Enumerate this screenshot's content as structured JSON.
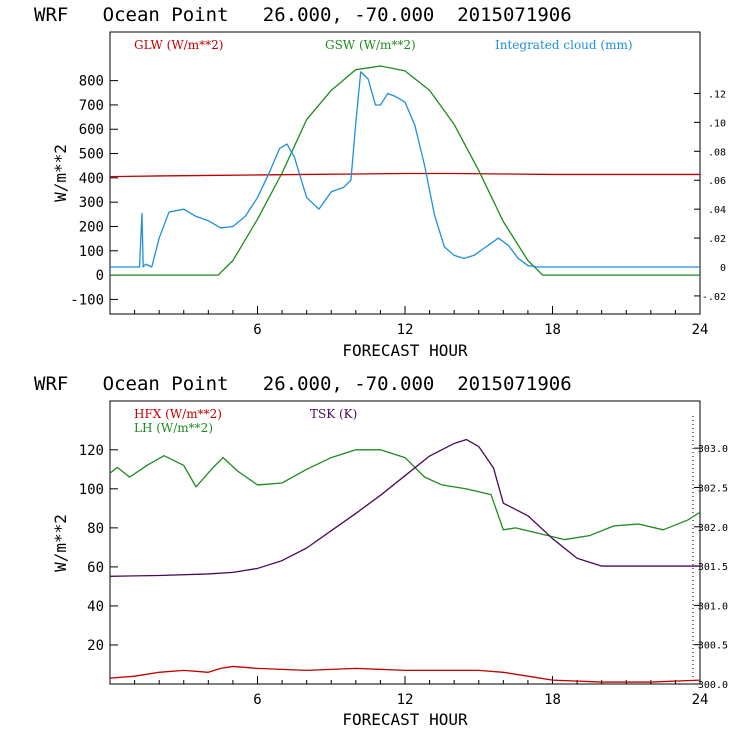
{
  "chart_data": [
    {
      "type": "line",
      "title": "WRF   Ocean Point   26.000, -70.000  2015071906",
      "xlabel": "FORECAST HOUR",
      "ylabel": "W/m**2",
      "xlim": [
        0,
        24
      ],
      "ylim": [
        -160,
        1000
      ],
      "xticks": [
        "6",
        "12",
        "18",
        "24"
      ],
      "yticks": [
        "-100",
        "0",
        "100",
        "200",
        "300",
        "400",
        "500",
        "600",
        "700",
        "800"
      ],
      "y2lim": [
        -0.0325,
        0.1625
      ],
      "y2ticks": [
        "-.02",
        "0",
        ".02",
        ".04",
        ".06",
        ".08",
        ".10",
        ".12"
      ],
      "series": [
        {
          "name": "GLW (W/m**2)",
          "color": "#c00000",
          "axis": "left",
          "x": [
            0,
            2,
            4,
            6,
            8,
            10,
            12,
            14,
            16,
            18,
            20,
            22,
            24
          ],
          "y": [
            405,
            408,
            410,
            412,
            414,
            416,
            418,
            418,
            416,
            414,
            414,
            414,
            414
          ]
        },
        {
          "name": "GSW (W/m**2)",
          "color": "#1e8a1e",
          "axis": "left",
          "x": [
            0,
            4.4,
            5,
            6,
            7,
            8,
            9,
            10,
            11,
            12,
            13,
            14,
            15,
            16,
            17,
            17.6,
            24
          ],
          "y": [
            0,
            0,
            60,
            230,
            420,
            640,
            760,
            845,
            860,
            840,
            760,
            620,
            430,
            220,
            60,
            0,
            0
          ]
        },
        {
          "name": "Integrated cloud (mm)",
          "color": "#1e8fdc",
          "axis": "right",
          "x": [
            0,
            1.2,
            1.3,
            1.35,
            1.45,
            1.7,
            2.0,
            2.4,
            3.0,
            3.5,
            4.0,
            4.5,
            5.0,
            5.5,
            6.0,
            6.5,
            6.9,
            7.2,
            7.5,
            8.0,
            8.5,
            9.0,
            9.5,
            9.8,
            10.0,
            10.2,
            10.5,
            10.8,
            11.0,
            11.3,
            11.6,
            12.0,
            12.4,
            12.8,
            13.2,
            13.6,
            14.0,
            14.4,
            14.8,
            15.3,
            15.8,
            16.2,
            16.6,
            17.0,
            17.4,
            18.0,
            24.0
          ],
          "y": [
            0,
            0,
            0.037,
            0,
            0.002,
            0,
            0.02,
            0.038,
            0.04,
            0.035,
            0.032,
            0.027,
            0.028,
            0.035,
            0.048,
            0.066,
            0.082,
            0.085,
            0.076,
            0.048,
            0.04,
            0.052,
            0.055,
            0.06,
            0.1,
            0.135,
            0.13,
            0.112,
            0.112,
            0.12,
            0.118,
            0.114,
            0.098,
            0.07,
            0.036,
            0.014,
            0.008,
            0.006,
            0.008,
            0.014,
            0.02,
            0.015,
            0.006,
            0.001,
            0,
            0,
            0
          ]
        }
      ]
    },
    {
      "type": "line",
      "title": "WRF   Ocean Point   26.000, -70.000  2015071906",
      "xlabel": "FORECAST HOUR",
      "ylabel": "W/m**2",
      "xlim": [
        0,
        24
      ],
      "ylim": [
        0,
        145
      ],
      "xticks": [
        "6",
        "12",
        "18",
        "24"
      ],
      "yticks": [
        "20",
        "40",
        "60",
        "80",
        "100",
        "120"
      ],
      "y2lim": [
        300.0,
        303.6
      ],
      "y2ticks": [
        "300.0",
        "300.5",
        "301.0",
        "301.5",
        "302.0",
        "302.5",
        "303.0"
      ],
      "series": [
        {
          "name": "HFX (W/m**2)",
          "color": "#c00000",
          "axis": "left",
          "x": [
            0,
            1,
            2,
            3,
            4,
            4.5,
            5,
            6,
            8,
            10,
            12,
            14,
            15,
            16,
            17,
            18,
            20,
            22,
            24
          ],
          "y": [
            3,
            4,
            6,
            7,
            6,
            8,
            9,
            8,
            7,
            8,
            7,
            7,
            7,
            6,
            4,
            2,
            1,
            1,
            2
          ]
        },
        {
          "name": "LH (W/m**2)",
          "color": "#1e8a1e",
          "axis": "left",
          "x": [
            0,
            0.3,
            0.8,
            1.5,
            2.2,
            3.0,
            3.5,
            4.2,
            4.6,
            5.2,
            6.0,
            7.0,
            8.0,
            9.0,
            10.0,
            11.0,
            12.0,
            12.8,
            13.5,
            14.5,
            15.5,
            16.0,
            16.5,
            17.5,
            18.5,
            19.5,
            20.5,
            21.5,
            22.5,
            23.5,
            24.0
          ],
          "y": [
            108,
            111,
            106,
            112,
            117,
            112,
            101,
            111,
            116,
            109,
            102,
            103,
            110,
            116,
            120,
            120,
            116,
            106,
            102,
            100,
            97,
            79,
            80,
            77,
            74,
            76,
            81,
            82,
            79,
            84,
            88
          ]
        },
        {
          "name": "TSK (K)",
          "color": "#4a0a5a",
          "axis": "right",
          "x": [
            0,
            2,
            4,
            5,
            6,
            7,
            8,
            9,
            10,
            11,
            12,
            13,
            14,
            14.5,
            15,
            15.6,
            16.0,
            17.0,
            18.0,
            19.0,
            20.0,
            22.0,
            24.0
          ],
          "y": [
            301.37,
            301.38,
            301.4,
            301.42,
            301.47,
            301.57,
            301.73,
            301.95,
            302.17,
            302.4,
            302.65,
            302.9,
            303.06,
            303.11,
            303.02,
            302.75,
            302.3,
            302.14,
            301.85,
            301.6,
            301.5,
            301.5,
            301.5
          ]
        }
      ]
    }
  ]
}
